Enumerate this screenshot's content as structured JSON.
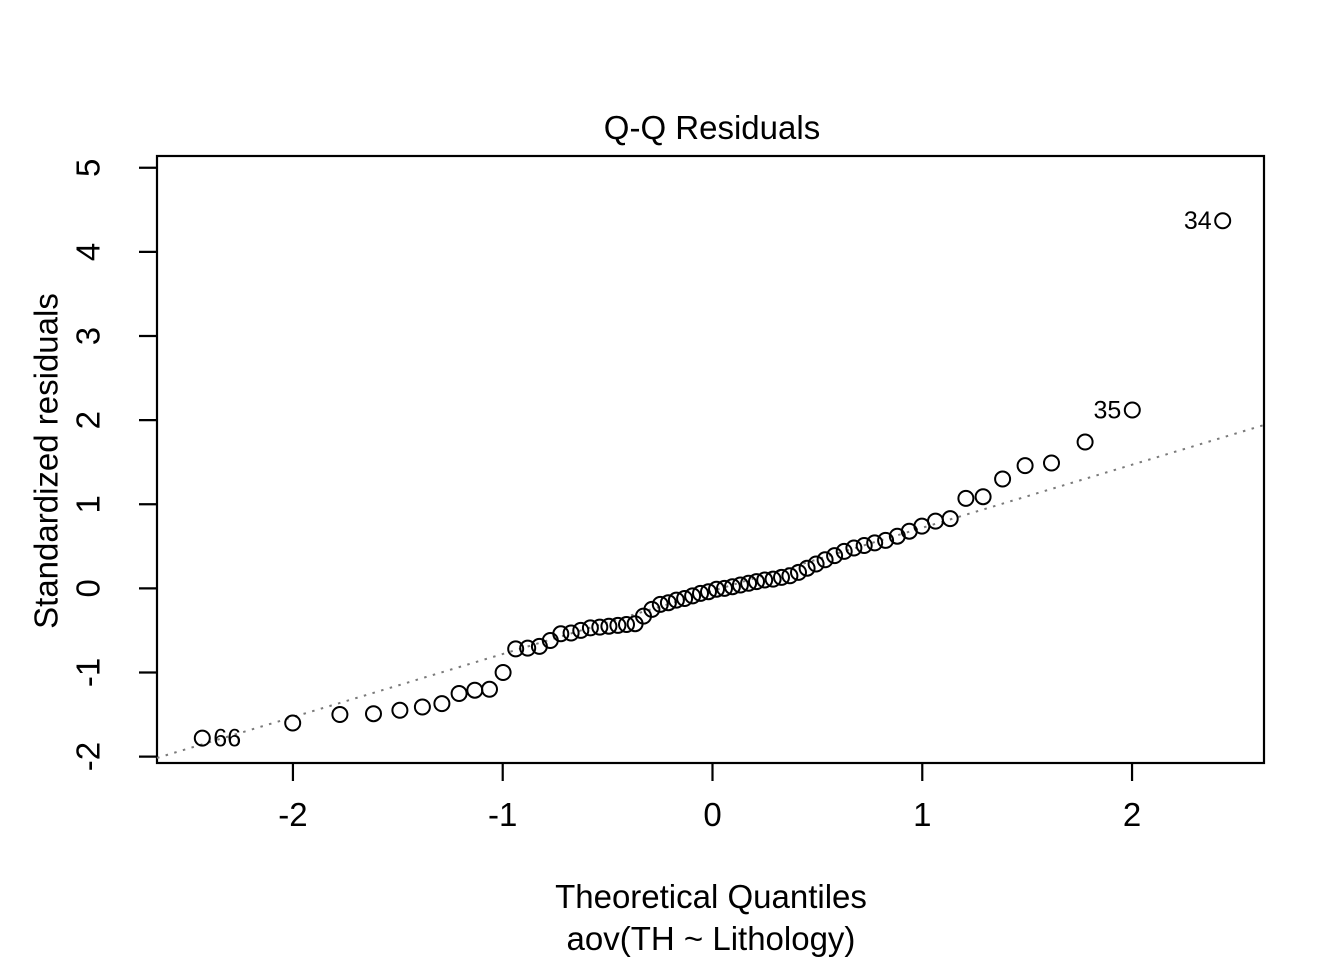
{
  "title": "Q-Q Residuals",
  "axes": {
    "x": {
      "label_line1": "Theoretical Quantiles",
      "label_line2": "aov(TH ~ Lithology)",
      "tick_labels": [
        "-2",
        "-1",
        "0",
        "1",
        "2"
      ]
    },
    "y": {
      "label": "Standardized residuals",
      "tick_labels": [
        "-2",
        "-1",
        "0",
        "1",
        "2",
        "3",
        "4",
        "5"
      ]
    }
  },
  "colors": {
    "background": "#ffffff",
    "foreground": "#000000",
    "reference_line": "#7a7a7a"
  },
  "chart_data": {
    "type": "scatter",
    "title": "Q-Q Residuals",
    "xlabel": "Theoretical Quantiles",
    "xlabel_sub": "aov(TH ~ Lithology)",
    "ylabel": "Standardized residuals",
    "xlim": [
      -2.648,
      2.629
    ],
    "ylim": [
      -2.076,
      5.14
    ],
    "x_ticks": [
      -2,
      -1,
      0,
      1,
      2
    ],
    "y_ticks": [
      -2,
      -1,
      0,
      1,
      2,
      3,
      4,
      5
    ],
    "grid": false,
    "legend": false,
    "marker": {
      "shape": "open-circle",
      "color": "#000000",
      "radius_px": 7.5,
      "stroke_px": 2
    },
    "reference_line": {
      "style": "dotted",
      "color": "#7a7a7a",
      "slope": 0.75,
      "intercept": -0.03
    },
    "points": {
      "x": [
        -2.432,
        -2.001,
        -1.776,
        -1.616,
        -1.49,
        -1.383,
        -1.29,
        -1.208,
        -1.133,
        -1.063,
        -0.998,
        -0.938,
        -0.881,
        -0.825,
        -0.773,
        -0.723,
        -0.674,
        -0.628,
        -0.582,
        -0.537,
        -0.494,
        -0.451,
        -0.41,
        -0.369,
        -0.329,
        -0.289,
        -0.249,
        -0.21,
        -0.172,
        -0.133,
        -0.095,
        -0.057,
        -0.019,
        0.019,
        0.057,
        0.095,
        0.133,
        0.172,
        0.21,
        0.249,
        0.289,
        0.329,
        0.369,
        0.41,
        0.451,
        0.494,
        0.537,
        0.582,
        0.628,
        0.674,
        0.723,
        0.773,
        0.825,
        0.881,
        0.938,
        0.998,
        1.063,
        1.133,
        1.208,
        1.29,
        1.383,
        1.49,
        1.616,
        1.776,
        2.001,
        2.432
      ],
      "y": [
        -1.78,
        -1.6,
        -1.5,
        -1.49,
        -1.45,
        -1.41,
        -1.37,
        -1.25,
        -1.21,
        -1.2,
        -1.0,
        -0.72,
        -0.71,
        -0.69,
        -0.62,
        -0.54,
        -0.53,
        -0.5,
        -0.47,
        -0.46,
        -0.45,
        -0.44,
        -0.43,
        -0.42,
        -0.33,
        -0.25,
        -0.19,
        -0.17,
        -0.14,
        -0.12,
        -0.09,
        -0.06,
        -0.04,
        -0.01,
        0.0,
        0.02,
        0.04,
        0.06,
        0.08,
        0.1,
        0.11,
        0.13,
        0.15,
        0.19,
        0.24,
        0.29,
        0.34,
        0.39,
        0.44,
        0.48,
        0.51,
        0.54,
        0.57,
        0.62,
        0.68,
        0.74,
        0.8,
        0.83,
        1.07,
        1.09,
        1.3,
        1.46,
        1.49,
        1.74,
        2.12,
        4.37
      ]
    },
    "labeled_points": [
      {
        "label": "34",
        "x": 2.432,
        "y": 4.37,
        "side": "left"
      },
      {
        "label": "35",
        "x": 2.001,
        "y": 2.12,
        "side": "left"
      },
      {
        "label": "66",
        "x": -2.432,
        "y": -1.78,
        "side": "right"
      }
    ]
  }
}
